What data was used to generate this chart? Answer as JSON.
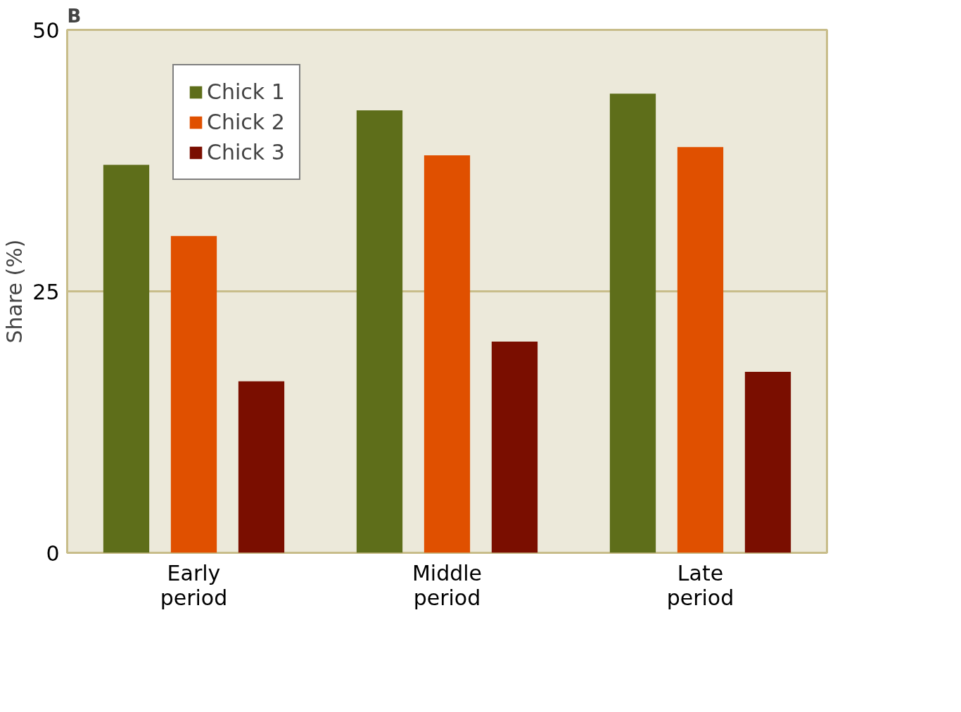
{
  "chart_data": {
    "type": "bar",
    "title": "B",
    "ylabel": "Share (%)",
    "categories": [
      "Early\nperiod",
      "Middle\nperiod",
      "Late\nperiod"
    ],
    "series": [
      {
        "name": "Chick 1",
        "color": "#5e6e1a",
        "values": [
          37.1,
          42.3,
          43.9
        ]
      },
      {
        "name": "Chick 2",
        "color": "#e05000",
        "values": [
          30.3,
          38.0,
          38.8
        ]
      },
      {
        "name": "Chick 3",
        "color": "#7a0e00",
        "values": [
          16.4,
          20.2,
          17.3
        ]
      }
    ],
    "ylim": [
      0,
      50
    ],
    "yticks": [
      0,
      25,
      50
    ],
    "ref_lines": [
      {
        "axis": "y",
        "value": 25,
        "color": "#c8bd8a"
      }
    ],
    "legend": "top left"
  }
}
